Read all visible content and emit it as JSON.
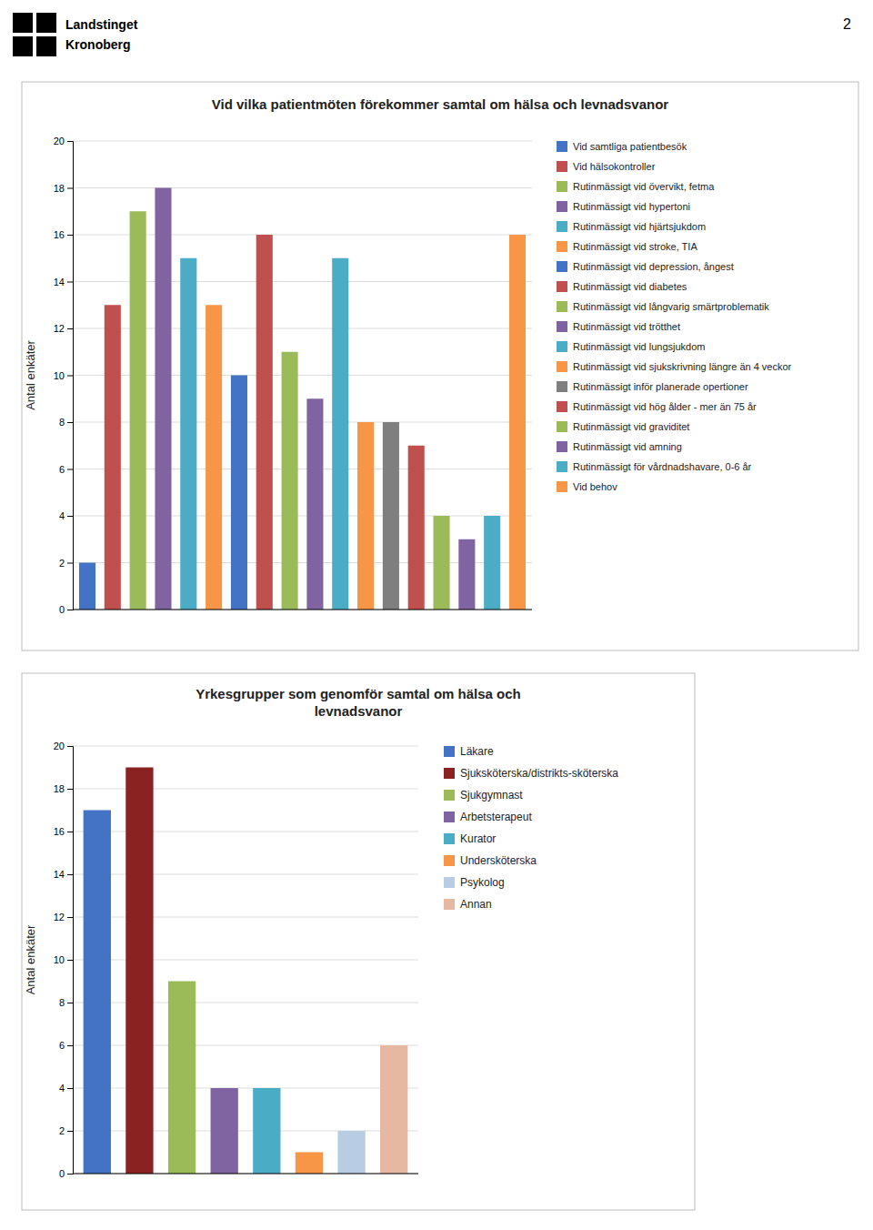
{
  "chart_data": [
    {
      "type": "bar",
      "title": "Vid vilka patientmöten förekommer samtal om hälsa och levnadsvanor",
      "ylabel": "Antal enkäter",
      "categories": [
        "Vid samtliga patientbesök",
        "Vid hälsokontroller",
        "Rutinmässigt vid övervikt, fetma",
        "Rutinmässigt vid hypertoni",
        "Rutinmässigt vid hjärtsjukdom",
        "Rutinmässigt vid stroke, TIA",
        "Rutinmässigt vid depression, ångest",
        "Rutinmässigt vid diabetes",
        "Rutinmässigt vid långvarig smärtproblematik",
        "Rutinmässigt vid trötthet",
        "Rutinmässigt vid lungsjukdom",
        "Rutinmässigt vid sjukskrivning längre än 4 veckor",
        "Rutinmässigt inför planerade opertioner",
        "Rutinmässigt vid hög ålder - mer än 75 år",
        "Rutinmässigt vid graviditet",
        "Rutinmässigt vid amning",
        "Rutinmässigt för vårdnadshavare, 0-6 år",
        "Vid behov"
      ],
      "values": [
        2,
        13,
        17,
        18,
        15,
        13,
        10,
        16,
        11,
        9,
        15,
        8,
        8,
        7,
        4,
        3,
        4,
        16
      ],
      "colors": [
        "#4472C4",
        "#C0504D",
        "#9BBB59",
        "#8064A2",
        "#4BACC6",
        "#F79646",
        "#4472C4",
        "#C0504D",
        "#9BBB59",
        "#8064A2",
        "#4BACC6",
        "#F79646",
        "#7F7F7F",
        "#C0504D",
        "#9BBB59",
        "#8064A2",
        "#4BACC6",
        "#F79646"
      ],
      "ylim": [
        0,
        20
      ],
      "yticks": [
        0,
        2,
        4,
        6,
        8,
        10,
        12,
        14,
        16,
        18,
        20
      ],
      "grid": true,
      "legend": "right",
      "tick_labels": "y"
    },
    {
      "type": "bar",
      "title": "Yrkesgrupper som genomför samtal om hälsa och\nlevnadsvanor",
      "ylabel": "Antal enkäter",
      "categories": [
        "Läkare",
        "Sjuksköterska/distrikts-sköterska",
        "Sjukgymnast",
        "Arbetsterapeut",
        "Kurator",
        "Undersköterska",
        "Psykolog",
        "Annan"
      ],
      "values": [
        17,
        19,
        9,
        4,
        4,
        1,
        2,
        6
      ],
      "colors": [
        "#4472C4",
        "#8B2222",
        "#9BBB59",
        "#8064A2",
        "#4BACC6",
        "#F79646",
        "#B8CCE4",
        "#E6B8A2"
      ],
      "ylim": [
        0,
        20
      ],
      "yticks": [
        0,
        2,
        4,
        6,
        8,
        10,
        12,
        14,
        16,
        18,
        20
      ],
      "grid": true,
      "legend": "right",
      "tick_labels": "y"
    }
  ],
  "page_number": "2",
  "logo_text": [
    "Landstinget",
    "Kronoberg"
  ]
}
